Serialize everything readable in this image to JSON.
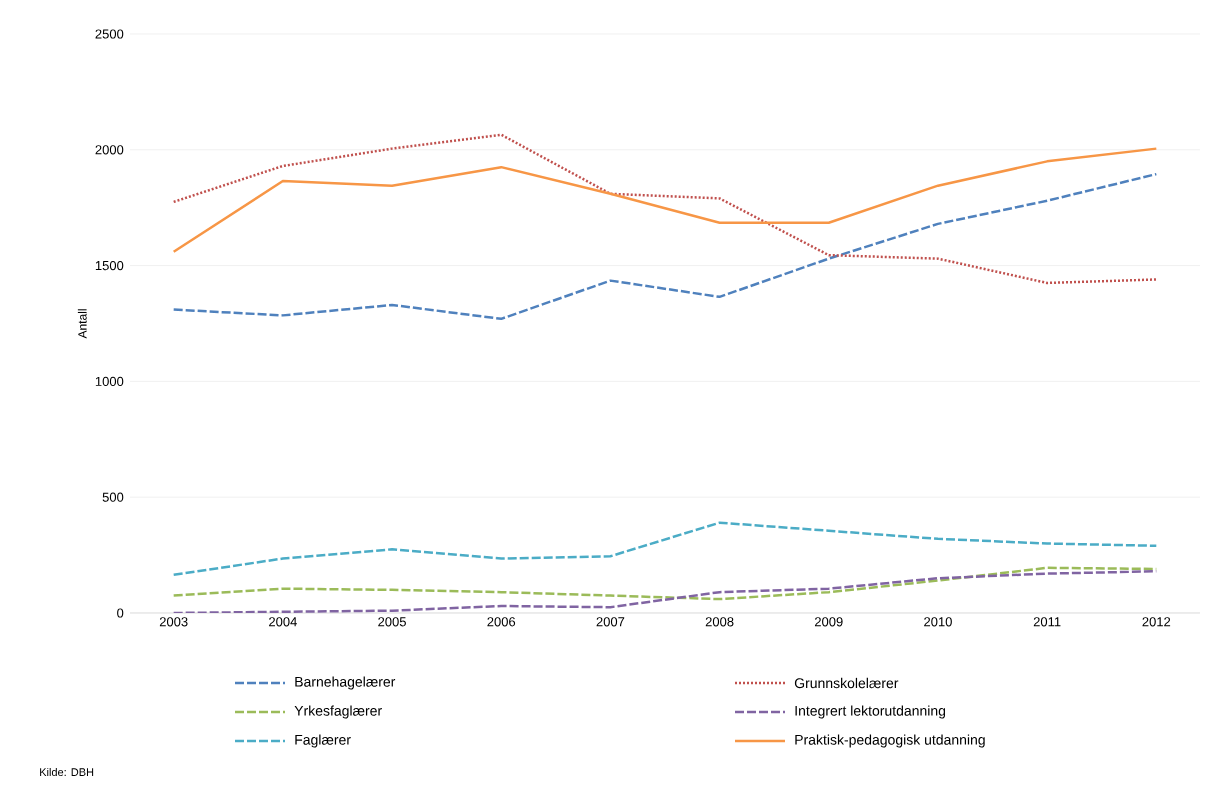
{
  "chart_data": {
    "type": "line",
    "ylabel": "Antall",
    "x": [
      2003,
      2004,
      2005,
      2006,
      2007,
      2008,
      2009,
      2010,
      2011,
      2012
    ],
    "xlim": [
      2002.6,
      2012.4
    ],
    "xticks": [
      2003,
      2004,
      2005,
      2006,
      2007,
      2008,
      2009,
      2010,
      2011,
      2012
    ],
    "ylim": [
      0,
      2500
    ],
    "yticks": [
      0,
      500,
      1000,
      1500,
      2000,
      2500
    ],
    "grid": "y",
    "legend": "bottom",
    "series": [
      {
        "name": "Barnehagelærer",
        "color": "#4f81bd",
        "line_style": "dashed",
        "values": [
          1310,
          1285,
          1330,
          1270,
          1435,
          1365,
          1530,
          1680,
          1780,
          1895
        ]
      },
      {
        "name": "Grunnskolelærer",
        "color": "#c0504d",
        "line_style": "dotted",
        "values": [
          1775,
          1930,
          2005,
          2065,
          1810,
          1790,
          1545,
          1530,
          1425,
          1440
        ]
      },
      {
        "name": "Yrkesfaglærer",
        "color": "#9bbb59",
        "line_style": "dashed",
        "values": [
          75,
          105,
          100,
          90,
          75,
          60,
          90,
          140,
          195,
          190
        ]
      },
      {
        "name": "Integrert lektorutdanning",
        "color": "#8064a2",
        "line_style": "dashed",
        "values": [
          0,
          5,
          10,
          30,
          25,
          90,
          105,
          150,
          170,
          180
        ]
      },
      {
        "name": "Faglærer",
        "color": "#4bacc6",
        "line_style": "dashed",
        "values": [
          165,
          235,
          275,
          235,
          245,
          390,
          355,
          320,
          300,
          290
        ]
      },
      {
        "name": "Praktisk-pedagogisk utdanning",
        "color": "#f79646",
        "line_style": "solid",
        "values": [
          1560,
          1865,
          1845,
          1925,
          1810,
          1685,
          1685,
          1845,
          1950,
          2005
        ]
      }
    ],
    "annotations": [
      "Kilde: DBH"
    ]
  }
}
